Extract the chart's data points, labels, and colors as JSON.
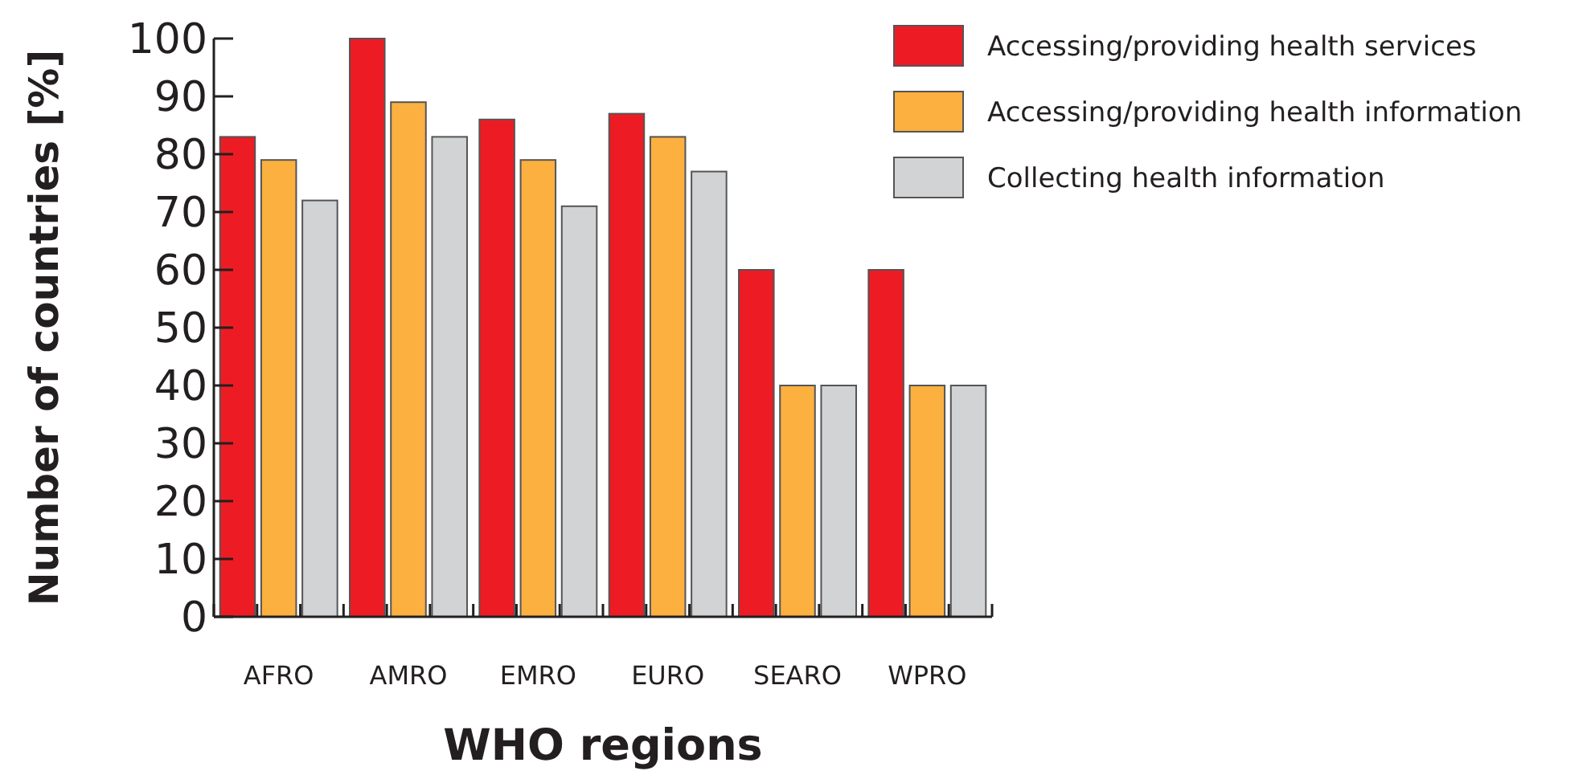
{
  "chart_data": {
    "type": "bar",
    "xlabel": "WHO regions",
    "ylabel": "Number of countries [%]",
    "categories": [
      "AFRO",
      "AMRO",
      "EMRO",
      "EURO",
      "SEARO",
      "WPRO"
    ],
    "series": [
      {
        "name": "Accessing/providing health services",
        "color": "#ed1c24",
        "values": [
          83,
          100,
          86,
          87,
          60,
          60
        ]
      },
      {
        "name": "Accessing/providing health information",
        "color": "#fbb040",
        "values": [
          79,
          89,
          79,
          83,
          40,
          40
        ]
      },
      {
        "name": "Collecting health information",
        "color": "#d1d3d4",
        "values": [
          72,
          83,
          71,
          77,
          40,
          40
        ]
      }
    ],
    "ylim": [
      0,
      100
    ],
    "yticks": [
      0,
      10,
      20,
      30,
      40,
      50,
      60,
      70,
      80,
      90,
      100
    ],
    "grid": false,
    "legend": "top right"
  }
}
